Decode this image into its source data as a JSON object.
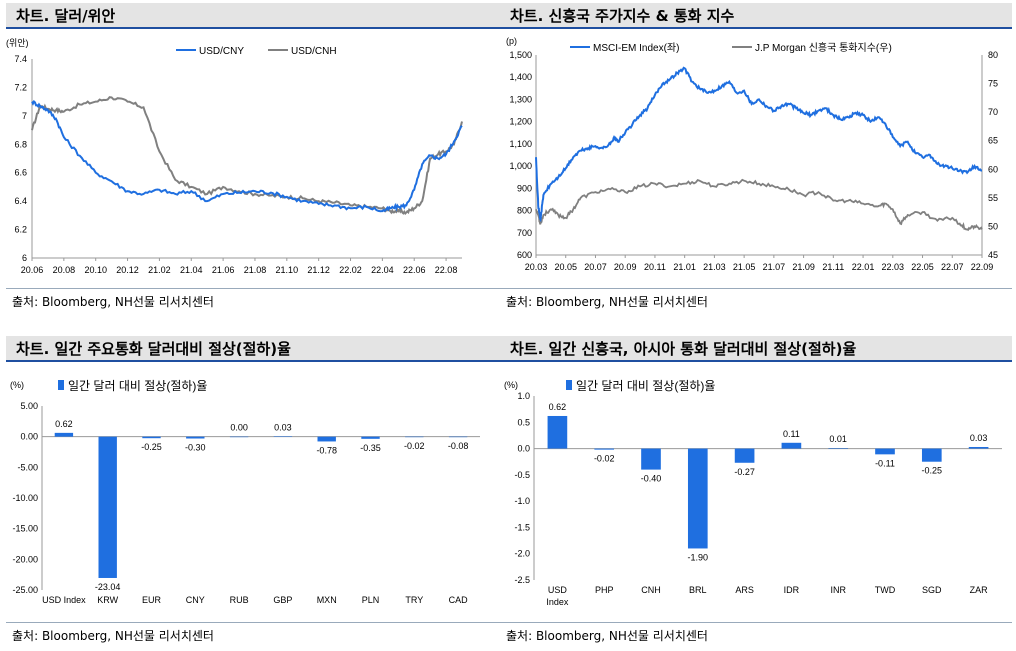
{
  "panels": {
    "tl": {
      "title": "차트. 달러/위안",
      "source": "출처: Bloomberg, NH선물 리서치센터"
    },
    "tr": {
      "title": "차트. 신흥국 주가지수 & 통화 지수",
      "source": "출처: Bloomberg, NH선물 리서치센터"
    },
    "bl": {
      "title": "차트. 일간 주요통화 달러대비 절상(절하)율",
      "source": "출처: Bloomberg, NH선물 리서치센터"
    },
    "br": {
      "title": "차트. 일간 신흥국, 아시아 통화 달러대비 절상(절하)율",
      "source": "출처: Bloomberg, NH선물 리서치센터"
    }
  },
  "chart_data": [
    {
      "id": "usdcny",
      "type": "line",
      "unit_label": "(위안)",
      "ylim": [
        6,
        7.4
      ],
      "yticks": [
        "6",
        "6.2",
        "6.4",
        "6.6",
        "6.8",
        "7",
        "7.2",
        "7.4"
      ],
      "xticks": [
        "20.06",
        "20.08",
        "20.10",
        "20.12",
        "21.02",
        "21.04",
        "21.06",
        "21.08",
        "21.10",
        "21.12",
        "22.02",
        "22.04",
        "22.06",
        "22.08"
      ],
      "series": [
        {
          "name": "USD/CNY",
          "color": "#1f6fe0",
          "x": [
            0,
            0.5,
            1,
            1.5,
            2,
            3,
            4,
            5,
            6,
            7,
            8,
            9,
            10,
            11,
            12,
            13,
            14,
            15,
            16,
            17,
            18,
            19,
            20,
            21,
            22,
            22.5,
            23,
            23.5,
            24,
            24.5,
            25,
            25.5,
            26,
            26.5,
            27
          ],
          "values": [
            7.1,
            7.07,
            7.04,
            6.98,
            6.85,
            6.72,
            6.6,
            6.54,
            6.47,
            6.45,
            6.48,
            6.45,
            6.47,
            6.4,
            6.45,
            6.46,
            6.47,
            6.46,
            6.43,
            6.4,
            6.38,
            6.37,
            6.35,
            6.36,
            6.33,
            6.35,
            6.36,
            6.37,
            6.48,
            6.66,
            6.72,
            6.7,
            6.73,
            6.82,
            6.93
          ]
        },
        {
          "name": "USD/CNH",
          "color": "#808080",
          "x": [
            0,
            0.5,
            1,
            1.5,
            2,
            3,
            4,
            5,
            6,
            7,
            8,
            9,
            10,
            11,
            12,
            13,
            14,
            15,
            16,
            17,
            18,
            19,
            20,
            21,
            22,
            22.5,
            23,
            23.5,
            24,
            24.5,
            25,
            25.5,
            26,
            26.5,
            27
          ],
          "values": [
            6.9,
            7.07,
            7.05,
            7.04,
            7.03,
            7.08,
            7.1,
            7.13,
            7.1,
            7.06,
            6.75,
            6.55,
            6.5,
            6.45,
            6.5,
            6.47,
            6.45,
            6.44,
            6.43,
            6.42,
            6.4,
            6.39,
            6.37,
            6.36,
            6.35,
            6.33,
            6.33,
            6.32,
            6.35,
            6.4,
            6.7,
            6.73,
            6.75,
            6.8,
            6.96
          ]
        }
      ]
    },
    {
      "id": "msci",
      "type": "line",
      "unit_label": "(p)",
      "ylim_left": [
        600,
        1500
      ],
      "ylim_right": [
        45,
        80
      ],
      "yticks_left": [
        "600",
        "700",
        "800",
        "900",
        "1,000",
        "1,100",
        "1,200",
        "1,300",
        "1,400",
        "1,500"
      ],
      "yticks_right": [
        "45",
        "50",
        "55",
        "60",
        "65",
        "70",
        "75",
        "80"
      ],
      "xticks": [
        "20.03",
        "20.05",
        "20.07",
        "20.09",
        "20.11",
        "21.01",
        "21.03",
        "21.05",
        "21.07",
        "21.09",
        "21.11",
        "22.01",
        "22.03",
        "22.05",
        "22.07",
        "22.09"
      ],
      "series": [
        {
          "name": "MSCI-EM Index(좌)",
          "axis": "left",
          "color": "#1f6fe0",
          "x": [
            0,
            0.3,
            0.6,
            1,
            2,
            3,
            4,
            5,
            6,
            7,
            8,
            9,
            10,
            10.5,
            11,
            12,
            13,
            14,
            15,
            16,
            17,
            18,
            19,
            20,
            21,
            22,
            23,
            24,
            25,
            26,
            27,
            28,
            29,
            30,
            31,
            32,
            33,
            34,
            35,
            36,
            37,
            38,
            39,
            40,
            41,
            42,
            43,
            44,
            45,
            46,
            47,
            48,
            49,
            50,
            51,
            52,
            53,
            54,
            55,
            56,
            57,
            58,
            59,
            60
          ],
          "values": [
            1040,
            820,
            760,
            870,
            920,
            950,
            990,
            1040,
            1070,
            1080,
            1090,
            1080,
            1100,
            1130,
            1110,
            1150,
            1190,
            1230,
            1260,
            1320,
            1370,
            1390,
            1420,
            1440,
            1380,
            1350,
            1330,
            1340,
            1360,
            1380,
            1330,
            1340,
            1280,
            1300,
            1270,
            1250,
            1270,
            1280,
            1260,
            1240,
            1230,
            1250,
            1260,
            1230,
            1210,
            1220,
            1240,
            1230,
            1200,
            1220,
            1190,
            1130,
            1090,
            1110,
            1060,
            1040,
            1050,
            1010,
            1000,
            990,
            980,
            970,
            1000,
            980
          ]
        },
        {
          "name": "J.P Morgan 신흥국 통화지수(우)",
          "axis": "right",
          "color": "#808080",
          "x": [
            0,
            0.3,
            0.6,
            1,
            2,
            3,
            4,
            5,
            6,
            8,
            10,
            12,
            14,
            16,
            18,
            20,
            22,
            24,
            26,
            28,
            30,
            32,
            34,
            36,
            38,
            40,
            42,
            44,
            46,
            47,
            48,
            49,
            50,
            52,
            54,
            56,
            57,
            58,
            59,
            60
          ],
          "values": [
            53,
            52,
            50.5,
            52,
            53,
            52,
            51.5,
            53,
            55,
            56,
            56.5,
            56,
            57,
            57.5,
            57,
            57.5,
            58,
            57,
            57.5,
            58,
            57.5,
            57,
            56.5,
            55.5,
            56,
            54.5,
            54.5,
            54,
            53.5,
            54,
            53,
            50.5,
            52,
            52.5,
            51,
            51.5,
            50.5,
            49.5,
            50,
            49.5
          ]
        }
      ]
    },
    {
      "id": "major",
      "type": "bar",
      "unit_label": "(%)",
      "legend": "일간 달러 대비 절상(절하)율",
      "color": "#1f6fe0",
      "ylim": [
        -25,
        5
      ],
      "yticks": [
        "5.00",
        "0.00",
        "-5.00",
        "-10.00",
        "-15.00",
        "-20.00",
        "-25.00"
      ],
      "categories": [
        "USD Index",
        "KRW",
        "EUR",
        "CNY",
        "RUB",
        "GBP",
        "MXN",
        "PLN",
        "TRY",
        "CAD"
      ],
      "values": [
        0.62,
        -23.04,
        -0.25,
        -0.3,
        0.0,
        0.03,
        -0.78,
        -0.35,
        -0.02,
        -0.08
      ],
      "value_labels": [
        "0.62",
        "-23.04",
        "-0.25",
        "-0.30",
        "0.00",
        "0.03",
        "-0.78",
        "-0.35",
        "-0.02",
        "-0.08"
      ]
    },
    {
      "id": "em",
      "type": "bar",
      "unit_label": "(%)",
      "legend": "일간 달러 대비 절상(절하)율",
      "color": "#1f6fe0",
      "ylim": [
        -2.5,
        1.0
      ],
      "yticks": [
        "1.0",
        "0.5",
        "0.0",
        "-0.5",
        "-1.0",
        "-1.5",
        "-2.0",
        "-2.5"
      ],
      "categories": [
        "USD Index",
        "PHP",
        "CNH",
        "BRL",
        "ARS",
        "IDR",
        "INR",
        "TWD",
        "SGD",
        "ZAR"
      ],
      "values": [
        0.62,
        -0.02,
        -0.4,
        -1.9,
        -0.27,
        0.11,
        0.01,
        -0.11,
        -0.25,
        0.03
      ],
      "value_labels": [
        "0.62",
        "-0.02",
        "-0.40",
        "-1.90",
        "-0.27",
        "0.11",
        "0.01",
        "-0.11",
        "-0.25",
        "0.03"
      ]
    }
  ]
}
